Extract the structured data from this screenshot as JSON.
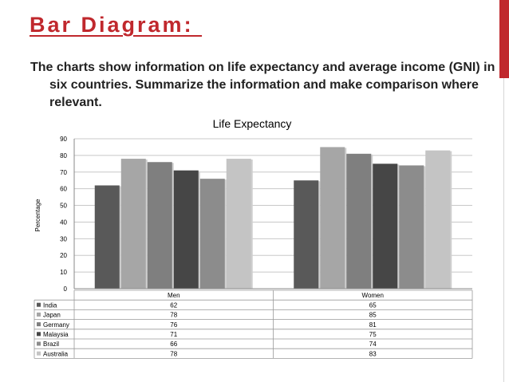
{
  "slide": {
    "title": "Bar Diagram: ",
    "prompt": "The charts show information on life expectancy and average income (GNI) in six countries. Summarize the information and make comparison where relevant."
  },
  "chart_data": {
    "type": "bar",
    "title": "Life Expectancy",
    "xlabel": "",
    "ylabel": "Percentage",
    "ylim": [
      0,
      90
    ],
    "yticks": [
      0,
      10,
      20,
      30,
      40,
      50,
      60,
      70,
      80,
      90
    ],
    "grid": true,
    "categories": [
      "Men",
      "Women"
    ],
    "legend_position": "bottom-table",
    "series": [
      {
        "name": "India",
        "values": [
          62,
          65
        ],
        "color": "#595959"
      },
      {
        "name": "Japan",
        "values": [
          78,
          85
        ],
        "color": "#a6a6a6"
      },
      {
        "name": "Germany",
        "values": [
          76,
          81
        ],
        "color": "#7f7f7f"
      },
      {
        "name": "Malaysia",
        "values": [
          71,
          75
        ],
        "color": "#464646"
      },
      {
        "name": "Brazil",
        "values": [
          66,
          74
        ],
        "color": "#8c8c8c"
      },
      {
        "name": "Australia",
        "values": [
          78,
          83
        ],
        "color": "#c4c4c4"
      }
    ]
  }
}
